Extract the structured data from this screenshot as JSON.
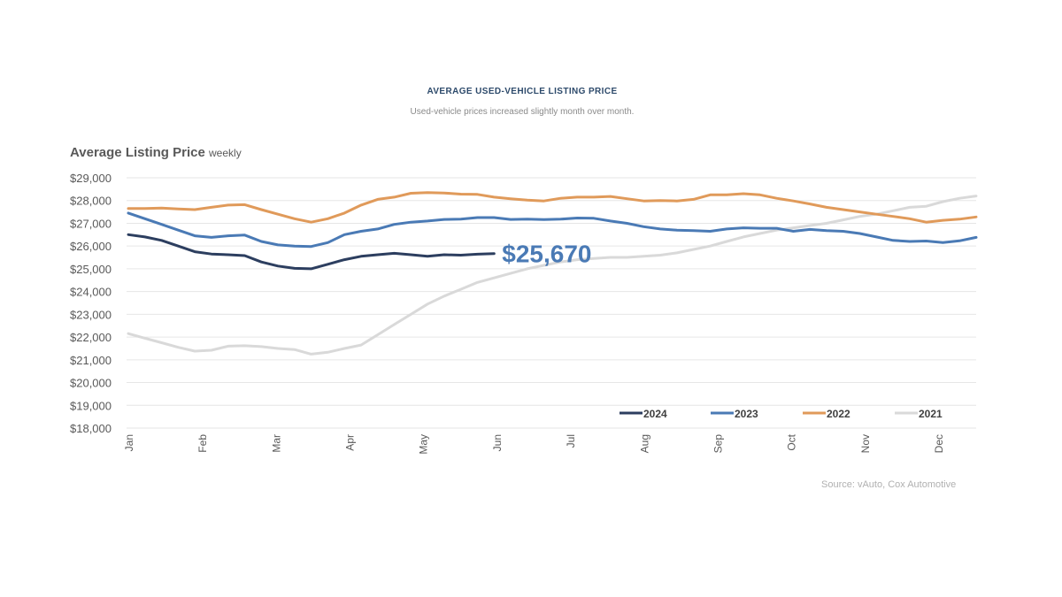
{
  "chart_data": {
    "type": "line",
    "title": "AVERAGE USED-VEHICLE LISTING PRICE",
    "subtitle": "Used-vehicle prices increased slightly month over month.",
    "heading": "Average Listing Price",
    "heading_sub": "weekly",
    "source": "Source: vAuto, Cox Automotive",
    "xlabel": "",
    "ylabel": "",
    "ylim": [
      18000,
      29000
    ],
    "yticks": [
      18000,
      19000,
      20000,
      21000,
      22000,
      23000,
      24000,
      25000,
      26000,
      27000,
      28000,
      29000
    ],
    "ytick_labels": [
      "$18,000",
      "$19,000",
      "$20,000",
      "$21,000",
      "$22,000",
      "$23,000",
      "$24,000",
      "$25,000",
      "$26,000",
      "$27,000",
      "$28,000",
      "$29,000"
    ],
    "xticks": [
      "Jan",
      "Feb",
      "Mar",
      "Apr",
      "May",
      "Jun",
      "Jul",
      "Aug",
      "Sep",
      "Oct",
      "Nov",
      "Dec"
    ],
    "x_unit": "week",
    "weeks_total": 52,
    "grid": true,
    "legend_position": "bottom-right",
    "annotation": {
      "text": "$25,670",
      "series": "2024",
      "color": "#4a7ab5"
    },
    "series": [
      {
        "name": "2024",
        "color": "#2c3e5f",
        "values": [
          26500,
          26400,
          26250,
          26000,
          25750,
          25650,
          25620,
          25580,
          25300,
          25120,
          25020,
          25000,
          25200,
          25400,
          25550,
          25620,
          25680,
          25620,
          25550,
          25620,
          25600,
          25640,
          25670
        ]
      },
      {
        "name": "2023",
        "color": "#4a7ab5",
        "values": [
          27450,
          27200,
          26950,
          26700,
          26450,
          26380,
          26450,
          26480,
          26200,
          26050,
          26000,
          25980,
          26150,
          26500,
          26650,
          26750,
          26950,
          27050,
          27100,
          27170,
          27180,
          27250,
          27250,
          27170,
          27180,
          27160,
          27180,
          27230,
          27220,
          27100,
          27000,
          26850,
          26750,
          26700,
          26680,
          26650,
          26750,
          26800,
          26780,
          26780,
          26650,
          26730,
          26680,
          26650,
          26550,
          26400,
          26250,
          26200,
          26220,
          26150,
          26230,
          26380
        ]
      },
      {
        "name": "2022",
        "color": "#e09a5a",
        "values": [
          27650,
          27650,
          27670,
          27630,
          27600,
          27700,
          27800,
          27820,
          27600,
          27400,
          27200,
          27050,
          27200,
          27450,
          27800,
          28050,
          28150,
          28320,
          28350,
          28330,
          28280,
          28270,
          28150,
          28080,
          28020,
          27980,
          28100,
          28150,
          28150,
          28180,
          28080,
          27980,
          28000,
          27980,
          28050,
          28250,
          28250,
          28300,
          28250,
          28100,
          27980,
          27850,
          27700,
          27600,
          27500,
          27400,
          27300,
          27200,
          27050,
          27130,
          27180,
          27280
        ]
      },
      {
        "name": "2021",
        "color": "#d9d9d9",
        "values": [
          22150,
          21950,
          21750,
          21550,
          21380,
          21420,
          21600,
          21620,
          21580,
          21500,
          21450,
          21250,
          21330,
          21500,
          21650,
          22100,
          22550,
          23000,
          23450,
          23800,
          24100,
          24400,
          24600,
          24800,
          25000,
          25150,
          25300,
          25400,
          25450,
          25500,
          25500,
          25550,
          25600,
          25700,
          25850,
          26000,
          26200,
          26400,
          26550,
          26700,
          26800,
          26900,
          27000,
          27150,
          27300,
          27400,
          27550,
          27700,
          27750,
          27950,
          28100,
          28200
        ]
      }
    ]
  }
}
